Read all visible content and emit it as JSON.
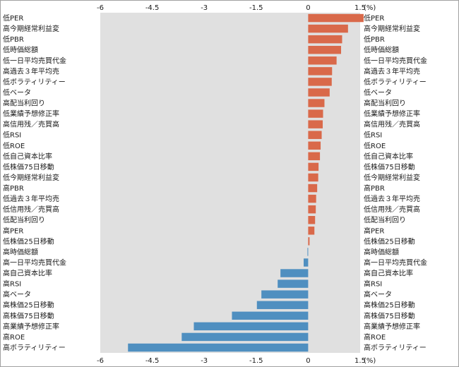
{
  "chart_data": {
    "type": "bar",
    "orientation": "horizontal",
    "unit": "(%)",
    "xlim": [
      -6,
      1.5
    ],
    "x_ticks": [
      "-6",
      "-4.5",
      "-3",
      "-1.5",
      "0",
      "1.5"
    ],
    "grid": false,
    "colors": {
      "positive": "#d9694a",
      "negative": "#4f8fc0",
      "plot_bg": "#e0e0e0"
    },
    "categories": [
      "低PER",
      "高今期経常利益変",
      "低PBR",
      "低時価総額",
      "低一日平均売買代金",
      "高過去３年平均売",
      "低ボラティリティー",
      "低ベータ",
      "高配当利回り",
      "低業績予想修正率",
      "高信用残／売買高",
      "低RSI",
      "低ROE",
      "低自己資本比率",
      "低株価75日移動",
      "低今期経常利益変",
      "高PBR",
      "低過去３年平均売",
      "低信用残／売買高",
      "低配当利回り",
      "高PER",
      "低株価25日移動",
      "高時価総額",
      "高一日平均売買代金",
      "高自己資本比率",
      "高RSI",
      "高ベータ",
      "高株価25日移動",
      "高株価75日移動",
      "高業績予想修正率",
      "高ROE",
      "高ボラティリティー"
    ],
    "values": [
      1.6,
      1.15,
      0.98,
      0.95,
      0.82,
      0.69,
      0.68,
      0.62,
      0.47,
      0.43,
      0.42,
      0.39,
      0.36,
      0.34,
      0.3,
      0.29,
      0.26,
      0.23,
      0.22,
      0.2,
      0.18,
      0.04,
      -0.02,
      -0.13,
      -0.8,
      -0.88,
      -1.35,
      -1.48,
      -2.2,
      -3.3,
      -3.65,
      -5.2
    ]
  }
}
